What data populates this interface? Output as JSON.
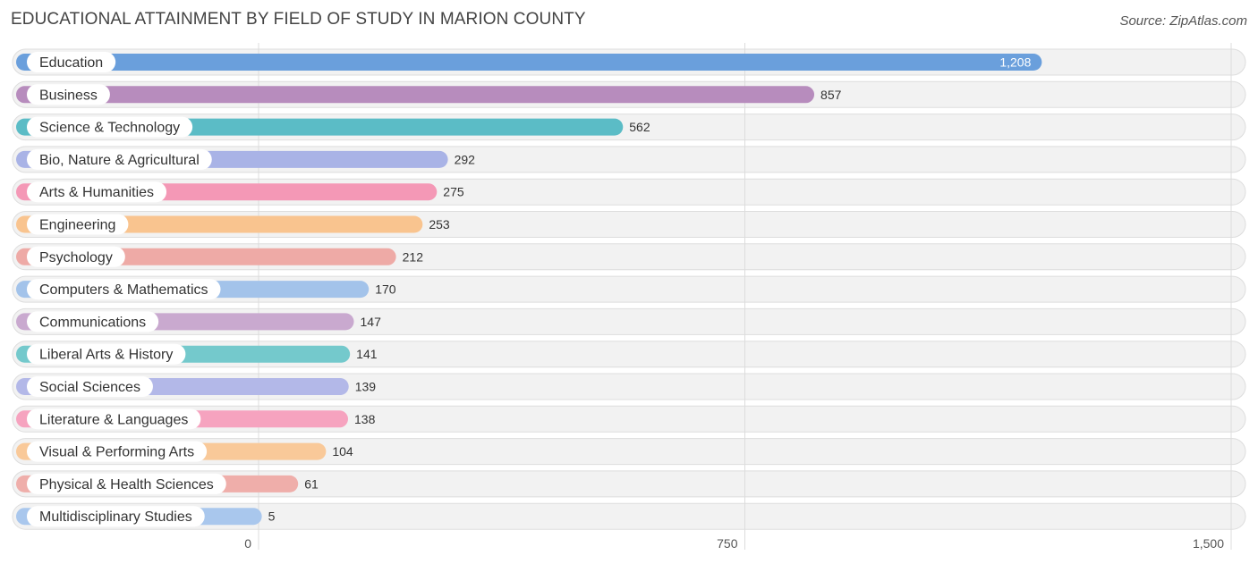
{
  "header": {
    "title": "EDUCATIONAL ATTAINMENT BY FIELD OF STUDY IN MARION COUNTY",
    "source": "Source: ZipAtlas.com"
  },
  "chart_data": {
    "type": "bar",
    "orientation": "horizontal",
    "title": "EDUCATIONAL ATTAINMENT BY FIELD OF STUDY IN MARION COUNTY",
    "xlim": [
      0,
      1500
    ],
    "xticks": [
      0,
      750,
      1500
    ],
    "xtick_labels": [
      "0",
      "750",
      "1,500"
    ],
    "grid": true,
    "categories": [
      "Education",
      "Business",
      "Science & Technology",
      "Bio, Nature & Agricultural",
      "Arts & Humanities",
      "Engineering",
      "Psychology",
      "Computers & Mathematics",
      "Communications",
      "Liberal Arts & History",
      "Social Sciences",
      "Literature & Languages",
      "Visual & Performing Arts",
      "Physical & Health Sciences",
      "Multidisciplinary Studies"
    ],
    "values": [
      1208,
      857,
      562,
      292,
      275,
      253,
      212,
      170,
      147,
      141,
      139,
      138,
      104,
      61,
      5
    ],
    "value_labels": [
      "1,208",
      "857",
      "562",
      "292",
      "275",
      "253",
      "212",
      "170",
      "147",
      "141",
      "139",
      "138",
      "104",
      "61",
      "5"
    ],
    "colors": [
      "#6a9fdc",
      "#b78cbd",
      "#5bbcc6",
      "#a9b3e6",
      "#f498b6",
      "#f9c48f",
      "#eeaaa6",
      "#a3c3ea",
      "#c9a9cf",
      "#74c9cc",
      "#b3b8e8",
      "#f6a3bf",
      "#f9c999",
      "#efaeaa",
      "#a9c7ed"
    ]
  }
}
